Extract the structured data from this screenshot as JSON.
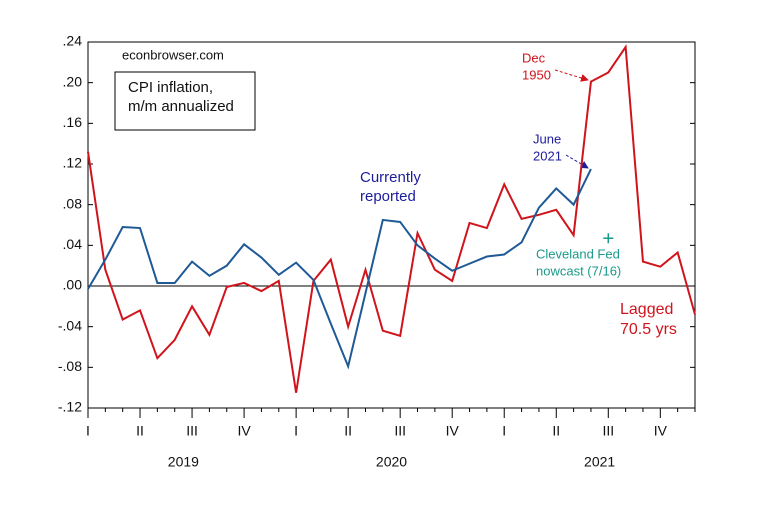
{
  "chart_data": {
    "type": "line",
    "categories": [
      "I",
      null,
      null,
      "II",
      null,
      null,
      "III",
      null,
      null,
      "IV",
      null,
      null,
      "I",
      null,
      null,
      "II",
      null,
      null,
      "III",
      null,
      null,
      "IV",
      null,
      null,
      "I",
      null,
      null,
      "II",
      null,
      null,
      "III",
      null,
      null,
      "IV",
      null,
      null
    ],
    "x_groups": [
      "2019",
      "2020",
      "2021"
    ],
    "series": [
      {
        "color": "#d0141c",
        "values": [
          0.132,
          0.016,
          -0.033,
          -0.024,
          -0.071,
          -0.053,
          -0.02,
          -0.048,
          -0.001,
          0.003,
          -0.005,
          0.005,
          -0.105,
          0.005,
          0.026,
          -0.04,
          0.016,
          -0.044,
          -0.049,
          0.052,
          0.016,
          0.005,
          0.062,
          0.057,
          0.1,
          0.066,
          0.07,
          0.075,
          0.05,
          0.201,
          0.21,
          0.235,
          0.024,
          0.019,
          0.033,
          -0.028
        ]
      },
      {
        "color": "#1f5a96",
        "values": [
          -0.003,
          0.026,
          0.058,
          0.057,
          0.003,
          0.003,
          0.024,
          0.01,
          0.02,
          0.041,
          0.028,
          0.011,
          0.023,
          0.006,
          -0.037,
          -0.079,
          -0.007,
          0.065,
          0.063,
          0.04,
          0.027,
          0.015,
          0.022,
          0.029,
          0.031,
          0.043,
          0.077,
          0.096,
          0.08,
          0.115,
          null,
          null,
          null,
          null,
          null,
          null
        ]
      },
      {
        "color": "#1a9a8a",
        "marker": "plus",
        "values": [
          null,
          null,
          null,
          null,
          null,
          null,
          null,
          null,
          null,
          null,
          null,
          null,
          null,
          null,
          null,
          null,
          null,
          null,
          null,
          null,
          null,
          null,
          null,
          null,
          null,
          null,
          null,
          null,
          null,
          null,
          0.047,
          null,
          null,
          null,
          null,
          null
        ]
      }
    ],
    "ylim": [
      -0.12,
      0.24
    ],
    "yticks": [
      {
        "value": -0.12,
        "label": "-.12"
      },
      {
        "value": -0.08,
        "label": "-.08"
      },
      {
        "value": -0.04,
        "label": "-.04"
      },
      {
        "value": 0,
        "label": ".00"
      },
      {
        "value": 0.04,
        "label": ".04"
      },
      {
        "value": 0.08,
        "label": ".08"
      },
      {
        "value": 0.12,
        "label": ".12"
      },
      {
        "value": 0.16,
        "label": ".16"
      },
      {
        "value": 0.2,
        "label": ".20"
      },
      {
        "value": 0.24,
        "label": ".24"
      }
    ],
    "grid": false,
    "annotations": [
      {
        "lines": [
          "econbrowser.com"
        ],
        "color": "#111"
      },
      {
        "lines": [
          "CPI inflation,",
          "m/m annualized"
        ],
        "color": "#111"
      },
      {
        "lines": [
          "Currently",
          "reported"
        ],
        "color": "#1c1c9c"
      },
      {
        "lines": [
          "June",
          "2021"
        ],
        "color": "#1c1c9c"
      },
      {
        "lines": [
          "Dec",
          "1950"
        ],
        "color": "#d0141c"
      },
      {
        "lines": [
          "Cleveland Fed",
          "nowcast (7/16)"
        ],
        "color": "#1a9a8a"
      },
      {
        "lines": [
          "Lagged",
          "70.5 yrs"
        ],
        "color": "#d0141c"
      }
    ]
  }
}
